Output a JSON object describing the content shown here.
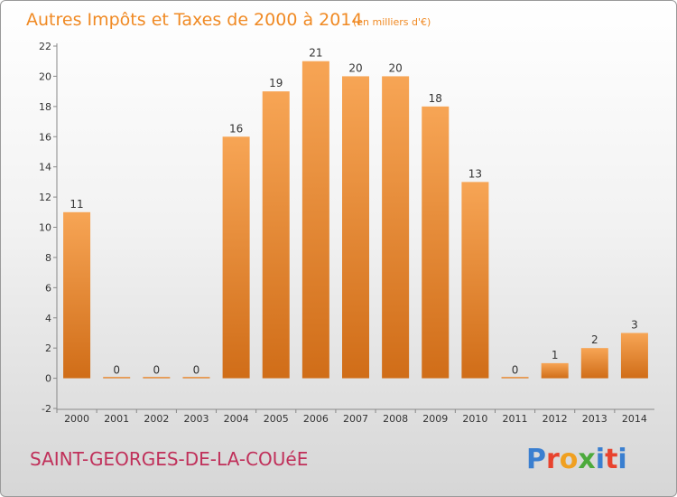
{
  "chart_data": {
    "type": "bar",
    "title": "Autres Impôts et Taxes de 2000 à 2014",
    "subtitle": "(en milliers d'€)",
    "categories": [
      "2000",
      "2001",
      "2002",
      "2003",
      "2004",
      "2005",
      "2006",
      "2007",
      "2008",
      "2009",
      "2010",
      "2011",
      "2012",
      "2013",
      "2014"
    ],
    "values": [
      11,
      0,
      0,
      0,
      16,
      19,
      21,
      20,
      20,
      18,
      13,
      0,
      1,
      2,
      3
    ],
    "yticks": [
      -2,
      0,
      2,
      4,
      6,
      8,
      10,
      12,
      14,
      16,
      18,
      20,
      22
    ],
    "ylim": [
      -2,
      22
    ],
    "grid": false,
    "colors": {
      "bar_light": "#f7a555",
      "bar_dark": "#d06d18",
      "title": "#f08a24",
      "commune": "#c0305a"
    }
  },
  "commune": "SAINT-GEORGES-DE-LA-COUéE",
  "logo": {
    "text": "Proxiti",
    "colors": [
      "#3a7fd0",
      "#e8432e",
      "#f0a020",
      "#4caa3c",
      "#3a7fd0",
      "#e8432e",
      "#3a7fd0"
    ]
  }
}
